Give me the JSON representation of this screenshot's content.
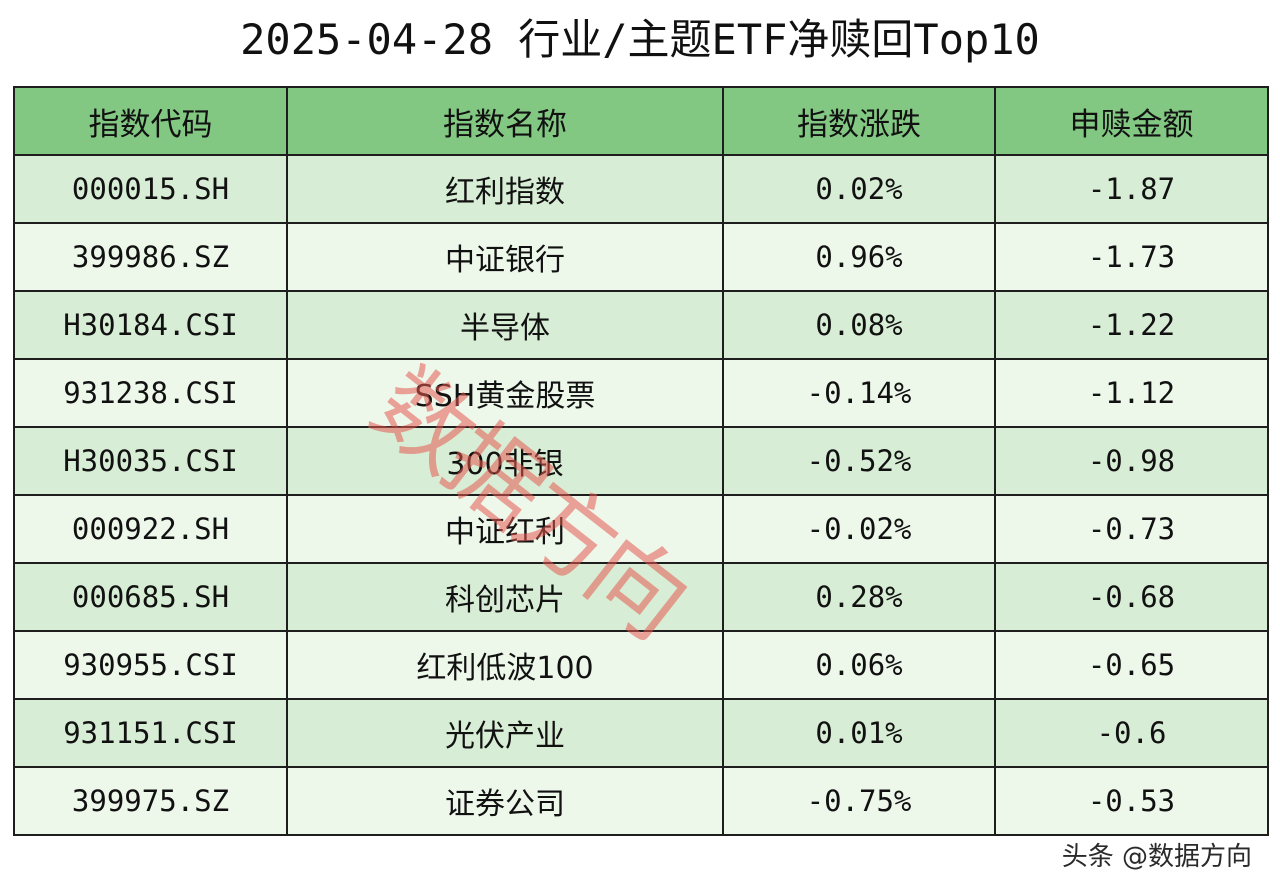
{
  "title": "2025-04-28 行业/主题ETF净赎回Top10",
  "table": {
    "headers": [
      "指数代码",
      "指数名称",
      "指数涨跌",
      "申赎金额"
    ],
    "rows": [
      {
        "code": "000015.SH",
        "name": "红利指数",
        "change": "0.02%",
        "amount": "-1.87"
      },
      {
        "code": "399986.SZ",
        "name": "中证银行",
        "change": "0.96%",
        "amount": "-1.73"
      },
      {
        "code": "H30184.CSI",
        "name": "半导体",
        "change": "0.08%",
        "amount": "-1.22"
      },
      {
        "code": "931238.CSI",
        "name": "SSH黄金股票",
        "change": "-0.14%",
        "amount": "-1.12"
      },
      {
        "code": "H30035.CSI",
        "name": "300非银",
        "change": "-0.52%",
        "amount": "-0.98"
      },
      {
        "code": "000922.SH",
        "name": "中证红利",
        "change": "-0.02%",
        "amount": "-0.73"
      },
      {
        "code": "000685.SH",
        "name": "科创芯片",
        "change": "0.28%",
        "amount": "-0.68"
      },
      {
        "code": "930955.CSI",
        "name": "红利低波100",
        "change": "0.06%",
        "amount": "-0.65"
      },
      {
        "code": "931151.CSI",
        "name": "光伏产业",
        "change": "0.01%",
        "amount": "-0.6"
      },
      {
        "code": "399975.SZ",
        "name": "证券公司",
        "change": "-0.75%",
        "amount": "-0.53"
      }
    ]
  },
  "watermark": "数据方向",
  "credit": "头条 @数据方向",
  "colors": {
    "header_bg": "#82c882",
    "row_odd_bg": "#d8edd5",
    "row_even_bg": "#edf7ea",
    "watermark": "#e65a50"
  }
}
